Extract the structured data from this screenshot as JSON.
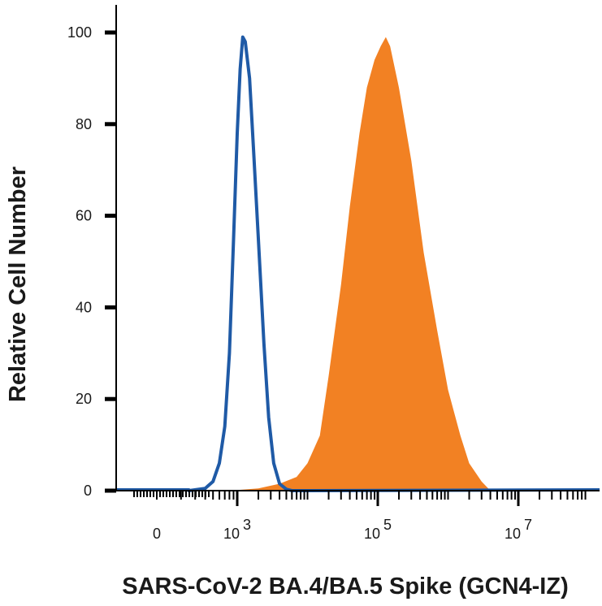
{
  "chart_data": {
    "type": "area",
    "xlabel": "SARS-CoV-2 BA.4/BA.5 Spike (GCN4-IZ)",
    "ylabel": "Relative Cell Number",
    "x_scale": "biexponential",
    "x_tick_labels": [
      {
        "value": 0,
        "base": "0",
        "exp": ""
      },
      {
        "value": 1000,
        "base": "10",
        "exp": "3"
      },
      {
        "value": 100000,
        "base": "10",
        "exp": "5"
      },
      {
        "value": 10000000,
        "base": "10",
        "exp": "7"
      }
    ],
    "y_ticks": [
      0,
      20,
      40,
      60,
      80,
      100
    ],
    "ylim": [
      0,
      100
    ],
    "grid": false,
    "legend": "none",
    "series": [
      {
        "style": "outline",
        "color": "#1f5aa6",
        "points": [
          [
            250,
            0
          ],
          [
            400,
            0.5
          ],
          [
            500,
            2
          ],
          [
            600,
            6
          ],
          [
            700,
            14
          ],
          [
            800,
            30
          ],
          [
            900,
            55
          ],
          [
            1000,
            78
          ],
          [
            1100,
            92
          ],
          [
            1200,
            99
          ],
          [
            1300,
            98
          ],
          [
            1500,
            90
          ],
          [
            1700,
            75
          ],
          [
            2000,
            55
          ],
          [
            2400,
            32
          ],
          [
            2800,
            16
          ],
          [
            3300,
            6
          ],
          [
            4000,
            1.5
          ],
          [
            5000,
            0.3
          ],
          [
            6000,
            0
          ]
        ]
      },
      {
        "style": "filled",
        "color": "#f28123",
        "points": [
          [
            800,
            0
          ],
          [
            2000,
            0.5
          ],
          [
            4000,
            1.5
          ],
          [
            7000,
            3
          ],
          [
            10000,
            6
          ],
          [
            15000,
            12
          ],
          [
            20000,
            25
          ],
          [
            30000,
            45
          ],
          [
            40000,
            62
          ],
          [
            55000,
            78
          ],
          [
            70000,
            88
          ],
          [
            90000,
            94
          ],
          [
            110000,
            97
          ],
          [
            130000,
            99
          ],
          [
            150000,
            97
          ],
          [
            200000,
            88
          ],
          [
            300000,
            72
          ],
          [
            450000,
            52
          ],
          [
            700000,
            35
          ],
          [
            1000000,
            22
          ],
          [
            1500000,
            12
          ],
          [
            2000000,
            6
          ],
          [
            3000000,
            2
          ],
          [
            4000000,
            0
          ]
        ]
      }
    ]
  }
}
